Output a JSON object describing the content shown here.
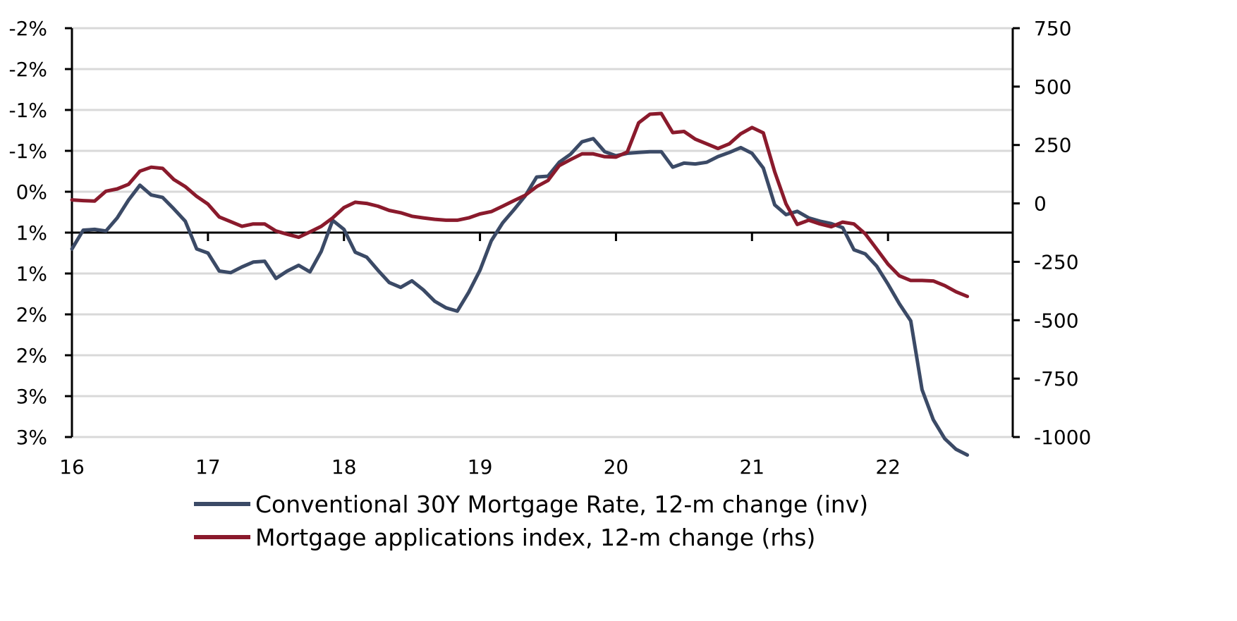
{
  "chart_data": {
    "type": "line",
    "x_ticks": [
      "16",
      "17",
      "18",
      "19",
      "20",
      "21",
      "22"
    ],
    "x_range": [
      2016.0,
      2022.917
    ],
    "left_axis": {
      "ticks": [
        "-2%",
        "-2%",
        "-1%",
        "-1%",
        "0%",
        "1%",
        "1%",
        "2%",
        "2%",
        "3%",
        "3%"
      ],
      "range": [
        -2.5,
        2.5
      ],
      "inverted": true
    },
    "right_axis": {
      "ticks": [
        "750",
        "500",
        "250",
        "0",
        "-250",
        "-500",
        "-750",
        "-1000"
      ],
      "range": [
        -1000,
        750
      ]
    },
    "zero_line": 0,
    "grid": "horizontal",
    "legend_position": "bottom",
    "colors": {
      "series_1": "#3b4a66",
      "series_2": "#8a1a2c",
      "grid": "#d9d9d9",
      "axis": "#000000"
    },
    "series": [
      {
        "name": "Conventional 30Y Mortgage Rate, 12-m change (inv)",
        "axis": "left",
        "color": "#3b4a66",
        "x": [
          2016.0,
          2016.083,
          2016.167,
          2016.25,
          2016.333,
          2016.417,
          2016.5,
          2016.583,
          2016.667,
          2016.75,
          2016.833,
          2016.917,
          2017.0,
          2017.083,
          2017.167,
          2017.25,
          2017.333,
          2017.417,
          2017.5,
          2017.583,
          2017.667,
          2017.75,
          2017.833,
          2017.917,
          2018.0,
          2018.083,
          2018.167,
          2018.25,
          2018.333,
          2018.417,
          2018.5,
          2018.583,
          2018.667,
          2018.75,
          2018.833,
          2018.917,
          2019.0,
          2019.083,
          2019.167,
          2019.25,
          2019.333,
          2019.417,
          2019.5,
          2019.583,
          2019.667,
          2019.75,
          2019.833,
          2019.917,
          2020.0,
          2020.083,
          2020.167,
          2020.25,
          2020.333,
          2020.417,
          2020.5,
          2020.583,
          2020.667,
          2020.75,
          2020.833,
          2020.917,
          2021.0,
          2021.083,
          2021.167,
          2021.25,
          2021.333,
          2021.417,
          2021.5,
          2021.583,
          2021.667,
          2021.75,
          2021.833,
          2021.917,
          2022.0,
          2022.083,
          2022.167,
          2022.25,
          2022.333,
          2022.417,
          2022.5,
          2022.583
        ],
        "values": [
          0.2,
          -0.03,
          -0.04,
          -0.02,
          -0.18,
          -0.4,
          -0.58,
          -0.46,
          -0.43,
          -0.29,
          -0.14,
          0.2,
          0.25,
          0.47,
          0.49,
          0.42,
          0.36,
          0.35,
          0.56,
          0.47,
          0.4,
          0.48,
          0.23,
          -0.15,
          -0.04,
          0.24,
          0.3,
          0.46,
          0.61,
          0.67,
          0.59,
          0.7,
          0.84,
          0.92,
          0.96,
          0.73,
          0.46,
          0.1,
          -0.12,
          -0.28,
          -0.45,
          -0.68,
          -0.69,
          -0.86,
          -0.96,
          -1.11,
          -1.15,
          -0.99,
          -0.94,
          -0.97,
          -0.98,
          -0.99,
          -0.99,
          -0.8,
          -0.85,
          -0.84,
          -0.86,
          -0.93,
          -0.98,
          -1.04,
          -0.97,
          -0.79,
          -0.34,
          -0.22,
          -0.26,
          -0.18,
          -0.14,
          -0.11,
          -0.06,
          0.21,
          0.26,
          0.41,
          0.63,
          0.87,
          1.08,
          1.92,
          2.29,
          2.52,
          2.65,
          2.72
        ]
      },
      {
        "name": "Mortgage applications index, 12-m change (rhs)",
        "axis": "right",
        "color": "#8a1a2c",
        "x": [
          2016.0,
          2016.083,
          2016.167,
          2016.25,
          2016.333,
          2016.417,
          2016.5,
          2016.583,
          2016.667,
          2016.75,
          2016.833,
          2016.917,
          2017.0,
          2017.083,
          2017.167,
          2017.25,
          2017.333,
          2017.417,
          2017.5,
          2017.583,
          2017.667,
          2017.75,
          2017.833,
          2017.917,
          2018.0,
          2018.083,
          2018.167,
          2018.25,
          2018.333,
          2018.417,
          2018.5,
          2018.583,
          2018.667,
          2018.75,
          2018.833,
          2018.917,
          2019.0,
          2019.083,
          2019.167,
          2019.25,
          2019.333,
          2019.417,
          2019.5,
          2019.583,
          2019.667,
          2019.75,
          2019.833,
          2019.917,
          2020.0,
          2020.083,
          2020.167,
          2020.25,
          2020.333,
          2020.417,
          2020.5,
          2020.583,
          2020.667,
          2020.75,
          2020.833,
          2020.917,
          2021.0,
          2021.083,
          2021.167,
          2021.25,
          2021.333,
          2021.417,
          2021.5,
          2021.583,
          2021.667,
          2021.75,
          2021.833,
          2021.917,
          2022.0,
          2022.083,
          2022.167,
          2022.25,
          2022.333,
          2022.417,
          2022.5,
          2022.583
        ],
        "values": [
          15,
          12,
          10,
          52,
          62,
          82,
          138,
          155,
          150,
          102,
          72,
          30,
          -3,
          -58,
          -78,
          -98,
          -88,
          -88,
          -118,
          -132,
          -145,
          -122,
          -98,
          -62,
          -18,
          5,
          0,
          -12,
          -30,
          -40,
          -55,
          -62,
          -68,
          -72,
          -72,
          -62,
          -45,
          -35,
          -12,
          12,
          35,
          72,
          98,
          162,
          188,
          212,
          212,
          200,
          198,
          220,
          345,
          382,
          385,
          303,
          308,
          275,
          255,
          235,
          255,
          298,
          325,
          302,
          135,
          -2,
          -90,
          -72,
          -88,
          -100,
          -80,
          -88,
          -130,
          -195,
          -260,
          -310,
          -330,
          -330,
          -332,
          -352,
          -378,
          -398
        ]
      }
    ]
  }
}
